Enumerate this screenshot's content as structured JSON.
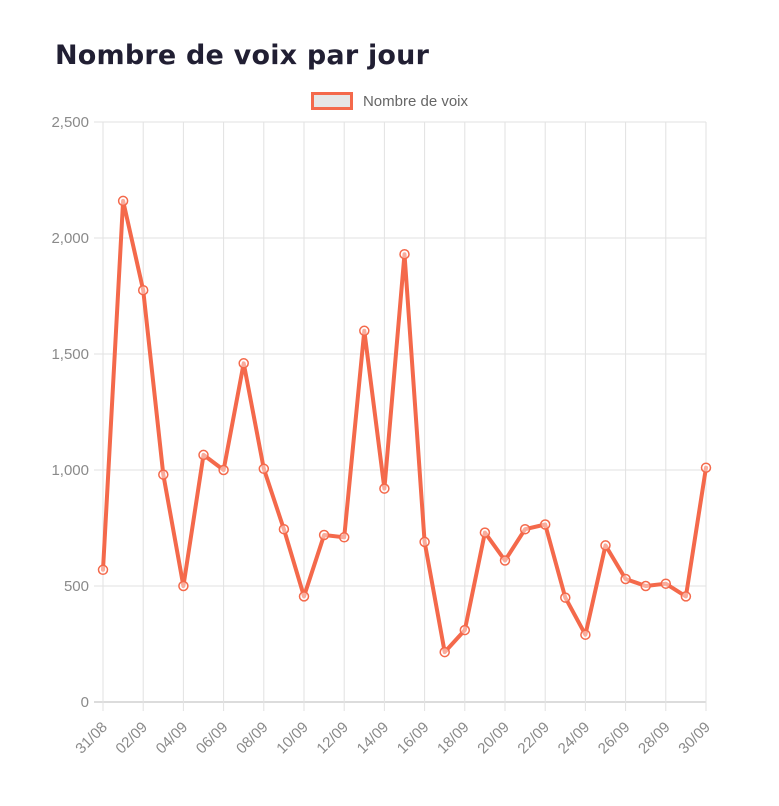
{
  "page": {
    "title": "Nombre de voix par jour"
  },
  "legend": {
    "label": "Nombre de voix"
  },
  "colors": {
    "series": "#f4694b",
    "legend_fill": "#e6e6e6",
    "grid": "#e2e2e2",
    "axis_line": "#b9b9b9",
    "axis_text": "#8a8a8a",
    "title_text": "#211f33"
  },
  "chart_data": {
    "type": "line",
    "title": "Nombre de voix par jour",
    "xlabel": "",
    "ylabel": "",
    "x": [
      "31/08",
      "01/09",
      "02/09",
      "03/09",
      "04/09",
      "05/09",
      "06/09",
      "07/09",
      "08/09",
      "09/09",
      "10/09",
      "11/09",
      "12/09",
      "13/09",
      "14/09",
      "15/09",
      "16/09",
      "17/09",
      "18/09",
      "19/09",
      "20/09",
      "21/09",
      "22/09",
      "23/09",
      "24/09",
      "25/09",
      "26/09",
      "27/09",
      "28/09",
      "29/09",
      "30/09"
    ],
    "series": [
      {
        "name": "Nombre de voix",
        "values": [
          570,
          2160,
          1775,
          980,
          500,
          1065,
          1000,
          1460,
          1005,
          745,
          455,
          720,
          710,
          1600,
          920,
          1930,
          690,
          215,
          310,
          730,
          610,
          745,
          765,
          450,
          290,
          675,
          530,
          500,
          510,
          455,
          1010
        ]
      }
    ],
    "ylim": [
      0,
      2500
    ],
    "y_ticks": [
      0,
      500,
      1000,
      1500,
      2000,
      2500
    ],
    "y_tick_labels": [
      "0",
      "500",
      "1,000",
      "1,500",
      "2,000",
      "2,500"
    ],
    "x_tick_every": 2,
    "grid": true,
    "legend_position": "top-center",
    "marker": "circle"
  }
}
